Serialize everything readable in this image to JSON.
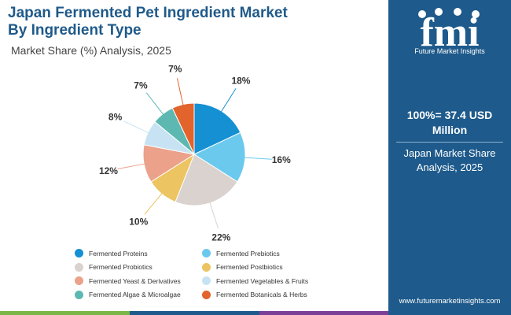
{
  "title_line1": "Japan Fermented Pet Ingredient Market",
  "title_line2": "By Ingredient Type",
  "subtitle": "Market Share (%) Analysis, 2025",
  "sidebar": {
    "logo_letters": "fmi",
    "logo_tagline": "Future Market Insights",
    "total_line1": "100%= 37.4 USD",
    "total_line2": "Million",
    "share_line1": "Japan Market Share",
    "share_line2": "Analysis, 2025",
    "website": "www.futuremarketinsights.com"
  },
  "chart_data": {
    "type": "pie",
    "title": "Japan Fermented Pet Ingredient Market By Ingredient Type",
    "categories": [
      "Fermented Proteins",
      "Fermented Prebiotics",
      "Fermented Probiotics",
      "Fermented Postbiotics",
      "Fermented Yeast & Derivatives",
      "Fermented Vegetables & Fruits",
      "Fermented Algae & Microalgae",
      "Fermented Botanicals & Herbs"
    ],
    "values": [
      18,
      16,
      22,
      10,
      12,
      8,
      7,
      7
    ],
    "labels": [
      "18%",
      "16%",
      "22%",
      "10%",
      "12%",
      "8%",
      "7%",
      "7%"
    ],
    "colors": [
      "#1590d3",
      "#6cc9ee",
      "#dad2ce",
      "#ecc461",
      "#eba18a",
      "#c7e3f3",
      "#5db8b2",
      "#e2632c"
    ],
    "legend_position": "bottom"
  },
  "bottom_bar_colors": [
    "#7ab648",
    "#1e5a8b",
    "#7b3f98",
    "#1e5a8b"
  ]
}
